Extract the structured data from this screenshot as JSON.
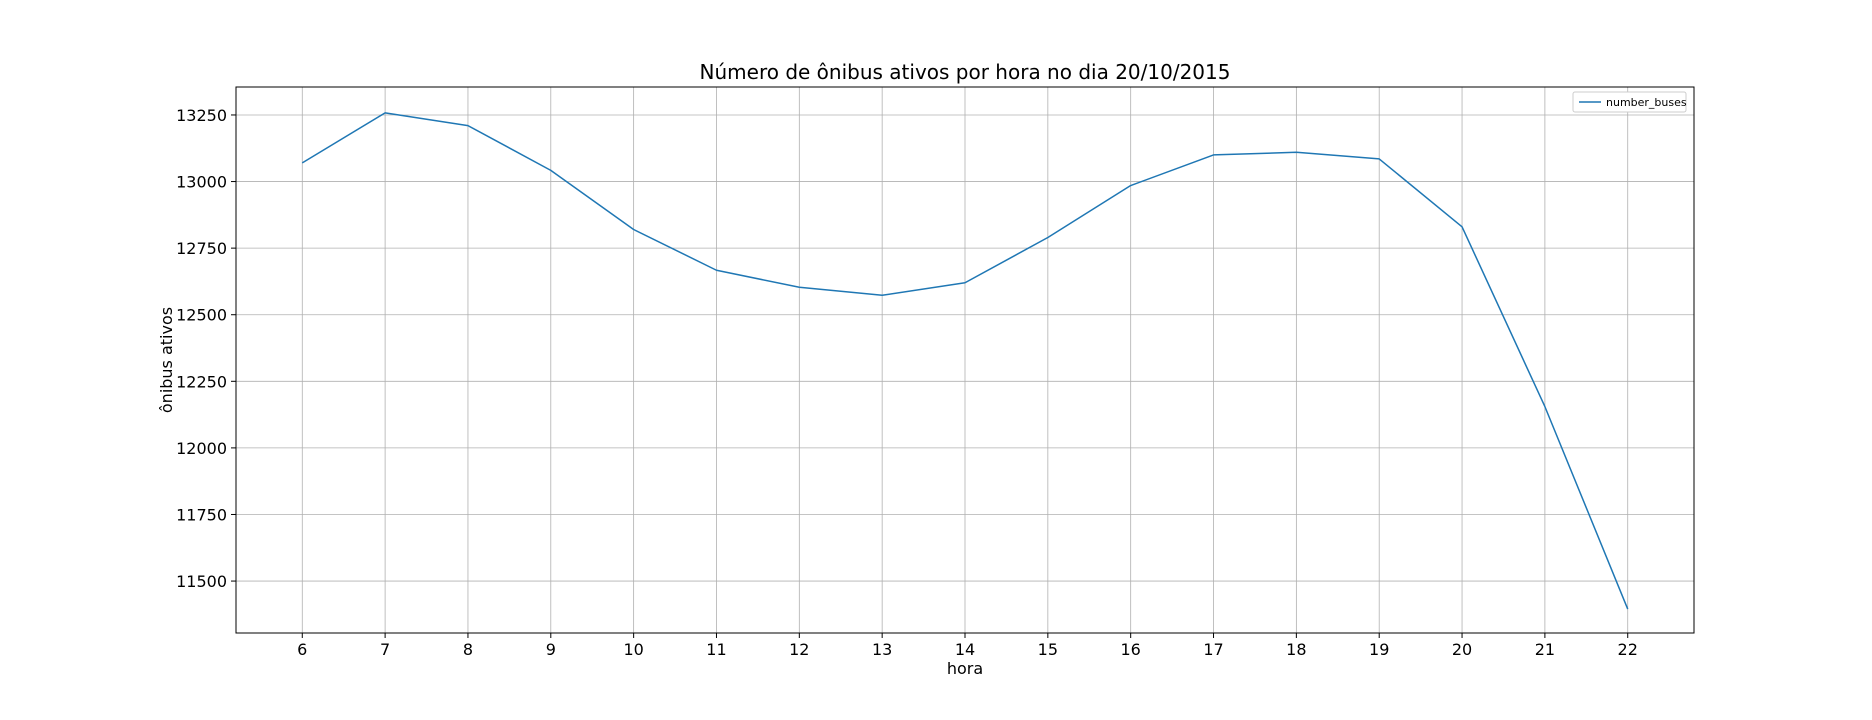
{
  "chart_data": {
    "type": "line",
    "title": "Número de ônibus ativos por hora no dia 20/10/2015",
    "xlabel": "hora",
    "ylabel": "ônibus ativos",
    "x": [
      6,
      7,
      8,
      9,
      10,
      11,
      12,
      13,
      14,
      15,
      16,
      17,
      18,
      19,
      20,
      21,
      22
    ],
    "series": [
      {
        "name": "number_buses",
        "color": "#1f77b4",
        "values": [
          13070,
          13258,
          13210,
          13042,
          12820,
          12667,
          12603,
          12573,
          12620,
          12790,
          12985,
          13100,
          13110,
          13085,
          12830,
          12155,
          11395
        ]
      }
    ],
    "xlim": [
      5.2,
      22.8
    ],
    "ylim": [
      11305,
      13355
    ],
    "xticks": [
      6,
      7,
      8,
      9,
      10,
      11,
      12,
      13,
      14,
      15,
      16,
      17,
      18,
      19,
      20,
      21,
      22
    ],
    "yticks": [
      11500,
      11750,
      12000,
      12250,
      12500,
      12750,
      13000,
      13250
    ],
    "grid": true,
    "legend_position": "top-right"
  }
}
